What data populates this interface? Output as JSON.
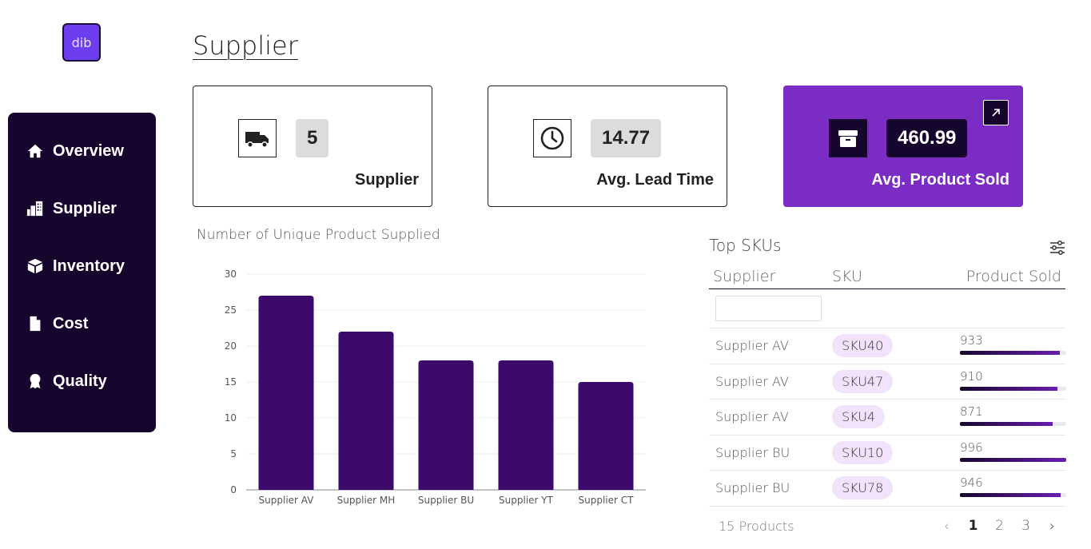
{
  "logo": {
    "text": "dib"
  },
  "sidebar": {
    "items": [
      {
        "label": "Overview",
        "icon": "home-icon"
      },
      {
        "label": "Supplier",
        "icon": "building-icon"
      },
      {
        "label": "Inventory",
        "icon": "box-icon"
      },
      {
        "label": "Cost",
        "icon": "document-icon"
      },
      {
        "label": "Quality",
        "icon": "award-icon"
      }
    ]
  },
  "page": {
    "title": "Supplier"
  },
  "kpis": [
    {
      "value": "5",
      "label": "Supplier",
      "icon": "truck-icon"
    },
    {
      "value": "14.77",
      "label": "Avg. Lead Time",
      "icon": "clock-icon"
    },
    {
      "value": "460.99",
      "label": "Avg. Product Sold",
      "icon": "package-icon",
      "accent": "#7b2cc5"
    }
  ],
  "chart_title": "Number of Unique Product Supplied",
  "chart_data": {
    "type": "bar",
    "title": "Number of Unique Product Supplied",
    "categories": [
      "Supplier AV",
      "Supplier MH",
      "Supplier BU",
      "Supplier YT",
      "Supplier CT"
    ],
    "values": [
      27,
      22,
      18,
      18,
      15
    ],
    "xlabel": "",
    "ylabel": "",
    "ylim": [
      0,
      30
    ],
    "yticks": [
      0,
      5,
      10,
      15,
      20,
      25,
      30
    ],
    "grid": true,
    "bar_color": "#3b0a6b"
  },
  "table": {
    "title": "Top SKUs",
    "columns": [
      "Supplier",
      "SKU",
      "Product Sold"
    ],
    "max_sold": 996,
    "rows": [
      {
        "supplier": "Supplier AV",
        "sku": "SKU40",
        "sold": 933
      },
      {
        "supplier": "Supplier AV",
        "sku": "SKU47",
        "sold": 910
      },
      {
        "supplier": "Supplier AV",
        "sku": "SKU4",
        "sold": 871
      },
      {
        "supplier": "Supplier BU",
        "sku": "SKU10",
        "sold": 996
      },
      {
        "supplier": "Supplier BU",
        "sku": "SKU78",
        "sold": 946
      }
    ],
    "footer": {
      "count_text": "15 Products",
      "pages": [
        "1",
        "2",
        "3"
      ],
      "current_page": "1"
    }
  }
}
